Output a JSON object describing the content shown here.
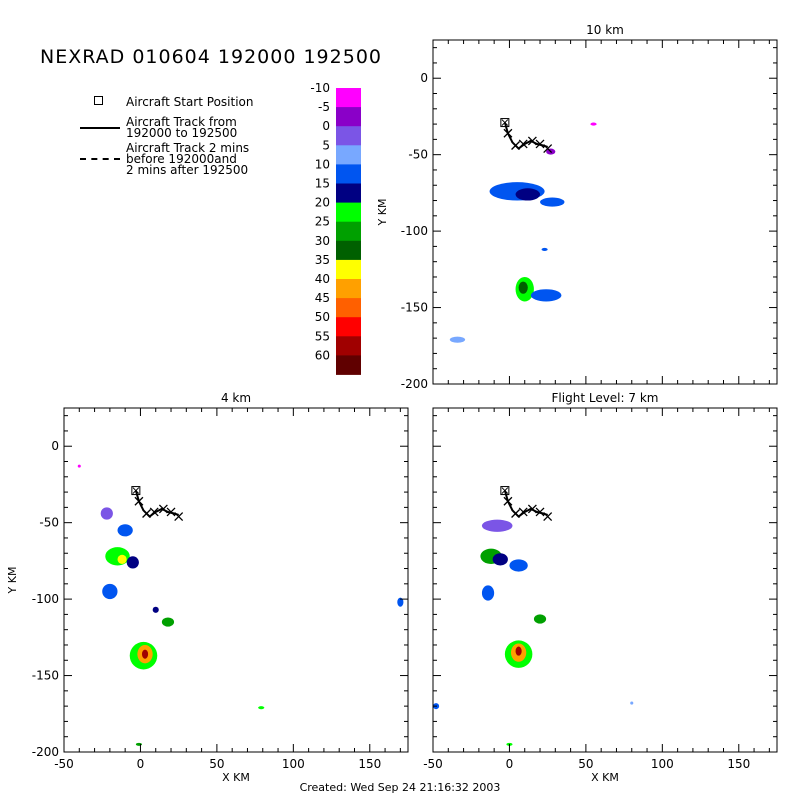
{
  "header": {
    "title": "NEXRAD 010604 192000 192500",
    "footer": "Created: Wed Sep 24 21:16:32 2003"
  },
  "legend": {
    "start_label": "Aircraft Start Position",
    "track_label_1": "Aircraft Track from",
    "track_label_2": "192000 to 192500",
    "dashed_label_1": "Aircraft Track 2 mins",
    "dashed_label_2": "before 192000and",
    "dashed_label_3": "2 mins after 192500"
  },
  "colorbar": {
    "levels": [
      {
        "label": "-10",
        "color": "#ff00ff"
      },
      {
        "label": "-5",
        "color": "#8a00c8"
      },
      {
        "label": "0",
        "color": "#7b55e6"
      },
      {
        "label": "5",
        "color": "#78a8ff"
      },
      {
        "label": "10",
        "color": "#0055f0"
      },
      {
        "label": "15",
        "color": "#000082"
      },
      {
        "label": "20",
        "color": "#00ff00"
      },
      {
        "label": "25",
        "color": "#00a000"
      },
      {
        "label": "30",
        "color": "#006000"
      },
      {
        "label": "35",
        "color": "#ffff00"
      },
      {
        "label": "40",
        "color": "#ffa000"
      },
      {
        "label": "45",
        "color": "#ff6000"
      },
      {
        "label": "50",
        "color": "#ff0000"
      },
      {
        "label": "55",
        "color": "#a00000"
      },
      {
        "label": "60",
        "color": "#600000"
      }
    ]
  },
  "chart_data": [
    {
      "type": "heatmap",
      "title": "10 km",
      "xlabel": "",
      "ylabel": "Y KM",
      "xlim": [
        -50,
        175
      ],
      "ylim": [
        -200,
        25
      ],
      "xticks": [
        -50,
        0,
        50,
        100,
        150
      ],
      "yticks": [
        -200,
        -150,
        -100,
        -50,
        0
      ],
      "show_xtick_labels": false,
      "show_ytick_labels": true,
      "aircraft_start": [
        -3,
        -29
      ],
      "track": [
        [
          -3,
          -29
        ],
        [
          -1,
          -36
        ],
        [
          2,
          -42
        ],
        [
          6,
          -46
        ],
        [
          10,
          -43
        ],
        [
          14,
          -41
        ],
        [
          18,
          -43
        ],
        [
          22,
          -44
        ],
        [
          25,
          -45
        ]
      ],
      "track_markers": [
        [
          -1,
          -36
        ],
        [
          4,
          -44
        ],
        [
          9,
          -43
        ],
        [
          15,
          -41
        ],
        [
          20,
          -43
        ],
        [
          25,
          -46
        ]
      ],
      "cells": [
        {
          "x": 5,
          "y": -74,
          "rx": 18,
          "ry": 6,
          "dbz": 10
        },
        {
          "x": 12,
          "y": -76,
          "rx": 8,
          "ry": 4,
          "dbz": 15
        },
        {
          "x": 28,
          "y": -81,
          "rx": 8,
          "ry": 3,
          "dbz": 10
        },
        {
          "x": 10,
          "y": -138,
          "rx": 6,
          "ry": 8,
          "dbz": 20
        },
        {
          "x": 9,
          "y": -137,
          "rx": 3,
          "ry": 4,
          "dbz": 30
        },
        {
          "x": 24,
          "y": -142,
          "rx": 10,
          "ry": 4,
          "dbz": 10
        },
        {
          "x": -34,
          "y": -171,
          "rx": 5,
          "ry": 2,
          "dbz": 5
        },
        {
          "x": 23,
          "y": -112,
          "rx": 2,
          "ry": 1,
          "dbz": 10
        },
        {
          "x": 27,
          "y": -48,
          "rx": 3,
          "ry": 2,
          "dbz": -5
        },
        {
          "x": 55,
          "y": -30,
          "rx": 2,
          "ry": 1,
          "dbz": -10
        }
      ]
    },
    {
      "type": "heatmap",
      "title": "4 km",
      "xlabel": "X KM",
      "ylabel": "Y KM",
      "xlim": [
        -50,
        175
      ],
      "ylim": [
        -200,
        25
      ],
      "xticks": [
        -50,
        0,
        50,
        100,
        150
      ],
      "yticks": [
        -200,
        -150,
        -100,
        -50,
        0
      ],
      "show_xtick_labels": true,
      "show_ytick_labels": true,
      "aircraft_start": [
        -3,
        -29
      ],
      "track": [
        [
          -3,
          -29
        ],
        [
          -1,
          -36
        ],
        [
          2,
          -42
        ],
        [
          6,
          -46
        ],
        [
          10,
          -43
        ],
        [
          14,
          -41
        ],
        [
          18,
          -43
        ],
        [
          22,
          -44
        ],
        [
          25,
          -45
        ]
      ],
      "track_markers": [
        [
          -1,
          -36
        ],
        [
          4,
          -44
        ],
        [
          9,
          -43
        ],
        [
          15,
          -41
        ],
        [
          20,
          -43
        ],
        [
          25,
          -46
        ]
      ],
      "cells": [
        {
          "x": -22,
          "y": -44,
          "rx": 4,
          "ry": 4,
          "dbz": 0
        },
        {
          "x": -10,
          "y": -55,
          "rx": 5,
          "ry": 4,
          "dbz": 10
        },
        {
          "x": -15,
          "y": -72,
          "rx": 8,
          "ry": 6,
          "dbz": 20
        },
        {
          "x": -12,
          "y": -74,
          "rx": 3,
          "ry": 3,
          "dbz": 35
        },
        {
          "x": -5,
          "y": -76,
          "rx": 4,
          "ry": 4,
          "dbz": 15
        },
        {
          "x": -20,
          "y": -95,
          "rx": 5,
          "ry": 5,
          "dbz": 10
        },
        {
          "x": 18,
          "y": -115,
          "rx": 4,
          "ry": 3,
          "dbz": 25
        },
        {
          "x": 10,
          "y": -107,
          "rx": 2,
          "ry": 2,
          "dbz": 15
        },
        {
          "x": 2,
          "y": -137,
          "rx": 9,
          "ry": 9,
          "dbz": 20
        },
        {
          "x": 3,
          "y": -136,
          "rx": 5,
          "ry": 6,
          "dbz": 40
        },
        {
          "x": 3,
          "y": -136,
          "rx": 2,
          "ry": 3,
          "dbz": 55
        },
        {
          "x": 170,
          "y": -102,
          "rx": 2,
          "ry": 3,
          "dbz": 10
        },
        {
          "x": 79,
          "y": -171,
          "rx": 2,
          "ry": 1,
          "dbz": 20
        },
        {
          "x": -1,
          "y": -195,
          "rx": 2,
          "ry": 1,
          "dbz": 25
        },
        {
          "x": -40,
          "y": -13,
          "rx": 1,
          "ry": 1,
          "dbz": -10
        }
      ]
    },
    {
      "type": "heatmap",
      "title": "Flight Level: 7 km",
      "xlabel": "X KM",
      "ylabel": "",
      "xlim": [
        -50,
        175
      ],
      "ylim": [
        -200,
        25
      ],
      "xticks": [
        -50,
        0,
        50,
        100,
        150
      ],
      "yticks": [
        -200,
        -150,
        -100,
        -50,
        0
      ],
      "show_xtick_labels": true,
      "show_ytick_labels": false,
      "aircraft_start": [
        -3,
        -29
      ],
      "track": [
        [
          -3,
          -29
        ],
        [
          -1,
          -36
        ],
        [
          2,
          -42
        ],
        [
          6,
          -46
        ],
        [
          10,
          -43
        ],
        [
          14,
          -41
        ],
        [
          18,
          -43
        ],
        [
          22,
          -44
        ],
        [
          25,
          -45
        ]
      ],
      "track_markers": [
        [
          -1,
          -36
        ],
        [
          4,
          -44
        ],
        [
          9,
          -43
        ],
        [
          15,
          -41
        ],
        [
          20,
          -43
        ],
        [
          25,
          -46
        ]
      ],
      "cells": [
        {
          "x": -8,
          "y": -52,
          "rx": 10,
          "ry": 4,
          "dbz": 0
        },
        {
          "x": -12,
          "y": -72,
          "rx": 7,
          "ry": 5,
          "dbz": 25
        },
        {
          "x": -6,
          "y": -74,
          "rx": 5,
          "ry": 4,
          "dbz": 15
        },
        {
          "x": 6,
          "y": -78,
          "rx": 6,
          "ry": 4,
          "dbz": 10
        },
        {
          "x": -14,
          "y": -96,
          "rx": 4,
          "ry": 5,
          "dbz": 10
        },
        {
          "x": 20,
          "y": -113,
          "rx": 4,
          "ry": 3,
          "dbz": 25
        },
        {
          "x": 6,
          "y": -136,
          "rx": 9,
          "ry": 9,
          "dbz": 20
        },
        {
          "x": 6,
          "y": -135,
          "rx": 5,
          "ry": 6,
          "dbz": 40
        },
        {
          "x": 6,
          "y": -134,
          "rx": 2,
          "ry": 3,
          "dbz": 55
        },
        {
          "x": -48,
          "y": -170,
          "rx": 2,
          "ry": 2,
          "dbz": 10
        },
        {
          "x": 0,
          "y": -195,
          "rx": 2,
          "ry": 1,
          "dbz": 20
        },
        {
          "x": 80,
          "y": -168,
          "rx": 1,
          "ry": 1,
          "dbz": 5
        }
      ]
    }
  ]
}
